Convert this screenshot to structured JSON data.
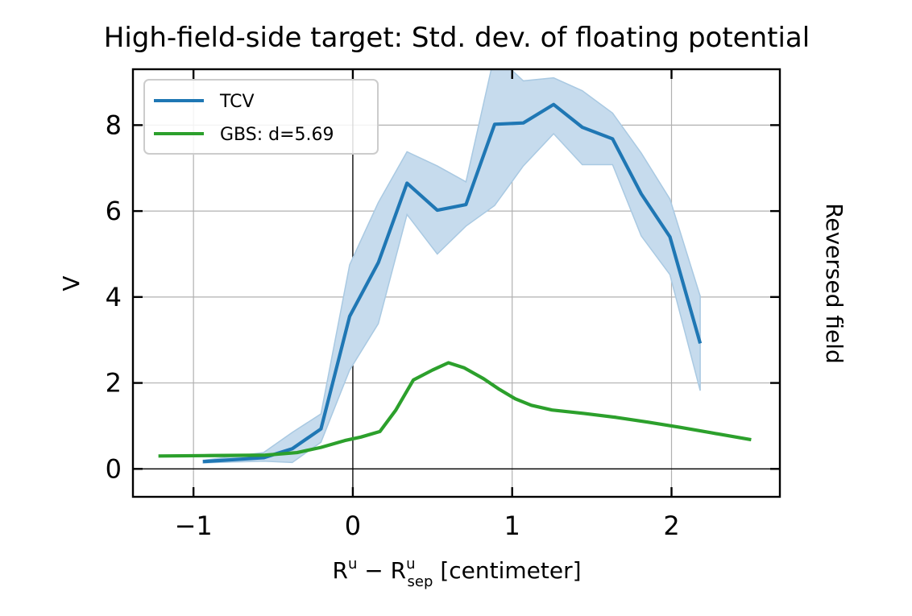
{
  "chart_data": {
    "type": "line",
    "title": "High-field-side target: Std. dev. of floating potential",
    "xlabel": {
      "base1": "R",
      "sup1": "u",
      "minus": " − ",
      "base2": "R",
      "sup2": "u",
      "sub2": "sep",
      "unit": " [centimeter]"
    },
    "ylabel": "V",
    "side_label": "Reversed field",
    "xlim": [
      -1.38,
      2.68
    ],
    "ylim": [
      -0.65,
      9.3
    ],
    "xticks": [
      -1,
      0,
      1,
      2
    ],
    "xtick_labels": [
      "−1",
      "0",
      "1",
      "2"
    ],
    "yticks": [
      0,
      2,
      4,
      6,
      8
    ],
    "ytick_labels": [
      "0",
      "2",
      "4",
      "6",
      "8"
    ],
    "grid": true,
    "zero_lines": true,
    "legend_position": "top-left",
    "series": [
      {
        "name": "TCV",
        "color": "#1f77b4",
        "band_color": "#c6dbed",
        "x": [
          -0.94,
          -0.56,
          -0.38,
          -0.2,
          -0.02,
          0.16,
          0.34,
          0.53,
          0.71,
          0.89,
          1.07,
          1.26,
          1.44,
          1.63,
          1.81,
          1.99,
          2.18
        ],
        "y": [
          0.17,
          0.26,
          0.47,
          0.93,
          3.55,
          4.8,
          6.65,
          6.02,
          6.15,
          8.02,
          8.05,
          8.48,
          7.95,
          7.68,
          6.4,
          5.4,
          2.92
        ],
        "y_upper": [
          0.2,
          0.38,
          0.85,
          1.28,
          4.75,
          6.2,
          7.38,
          7.05,
          6.68,
          9.65,
          9.03,
          9.1,
          8.8,
          8.28,
          7.35,
          6.28,
          4.02
        ],
        "y_lower": [
          0.14,
          0.18,
          0.15,
          0.62,
          2.3,
          3.38,
          5.92,
          5.0,
          5.65,
          6.13,
          7.05,
          7.8,
          7.08,
          7.08,
          5.42,
          4.52,
          1.82
        ]
      },
      {
        "name": "GBS: d=5.69",
        "color": "#2ca02c",
        "x": [
          -1.22,
          -0.9,
          -0.55,
          -0.35,
          -0.2,
          -0.05,
          0.05,
          0.17,
          0.27,
          0.38,
          0.5,
          0.6,
          0.7,
          0.82,
          0.92,
          1.02,
          1.12,
          1.25,
          1.45,
          1.65,
          1.85,
          2.05,
          2.25,
          2.5
        ],
        "y": [
          0.3,
          0.31,
          0.32,
          0.38,
          0.5,
          0.66,
          0.74,
          0.87,
          1.37,
          2.07,
          2.3,
          2.47,
          2.35,
          2.1,
          1.85,
          1.63,
          1.48,
          1.37,
          1.29,
          1.2,
          1.09,
          0.97,
          0.84,
          0.68
        ]
      }
    ]
  }
}
